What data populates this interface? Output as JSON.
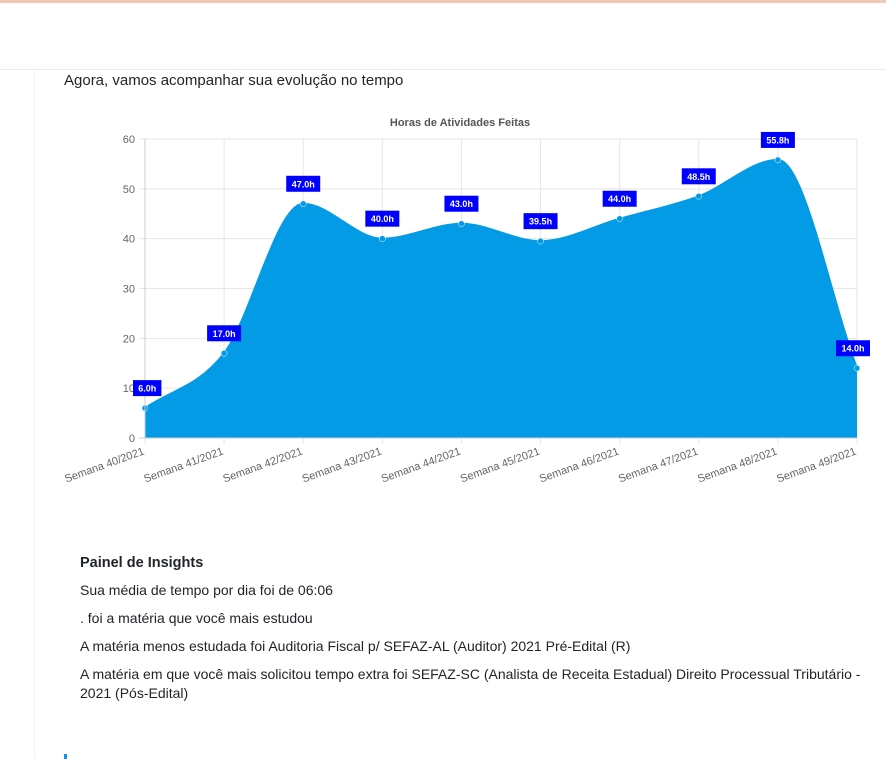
{
  "section": {
    "heading": "Agora, vamos acompanhar sua evolução no tempo"
  },
  "chart_data": {
    "type": "area",
    "title": "Horas de Atividades Feitas",
    "xlabel": "",
    "ylabel": "",
    "categories": [
      "Semana 40/2021",
      "Semana 41/2021",
      "Semana 42/2021",
      "Semana 43/2021",
      "Semana 44/2021",
      "Semana 45/2021",
      "Semana 46/2021",
      "Semana 47/2021",
      "Semana 48/2021",
      "Semana 49/2021"
    ],
    "values": [
      6.0,
      17.0,
      47.0,
      40.0,
      43.0,
      39.5,
      44.0,
      48.5,
      55.8,
      14.0
    ],
    "data_labels": [
      "6.0h",
      "17.0h",
      "47.0h",
      "40.0h",
      "43.0h",
      "39.5h",
      "44.0h",
      "48.5h",
      "55.8h",
      "14.0h"
    ],
    "ylim": [
      0,
      60
    ],
    "yticks": [
      "0",
      "10",
      "20",
      "30",
      "40",
      "50",
      "60"
    ],
    "grid": true,
    "fill_color": "#039be5",
    "label_color": "#0000ff"
  },
  "insights": {
    "title": "Painel de Insights",
    "lines": [
      "Sua média de tempo por dia foi de 06:06",
      ". foi a matéria que você mais estudou",
      "A matéria menos estudada foi Auditoria Fiscal p/ SEFAZ-AL (Auditor) 2021 Pré-Edital (R)",
      "A matéria em que você mais solicitou tempo extra foi SEFAZ-SC (Analista de Receita Estadual) Direito Processual Tributário - 2021 (Pós-Edital)"
    ]
  }
}
